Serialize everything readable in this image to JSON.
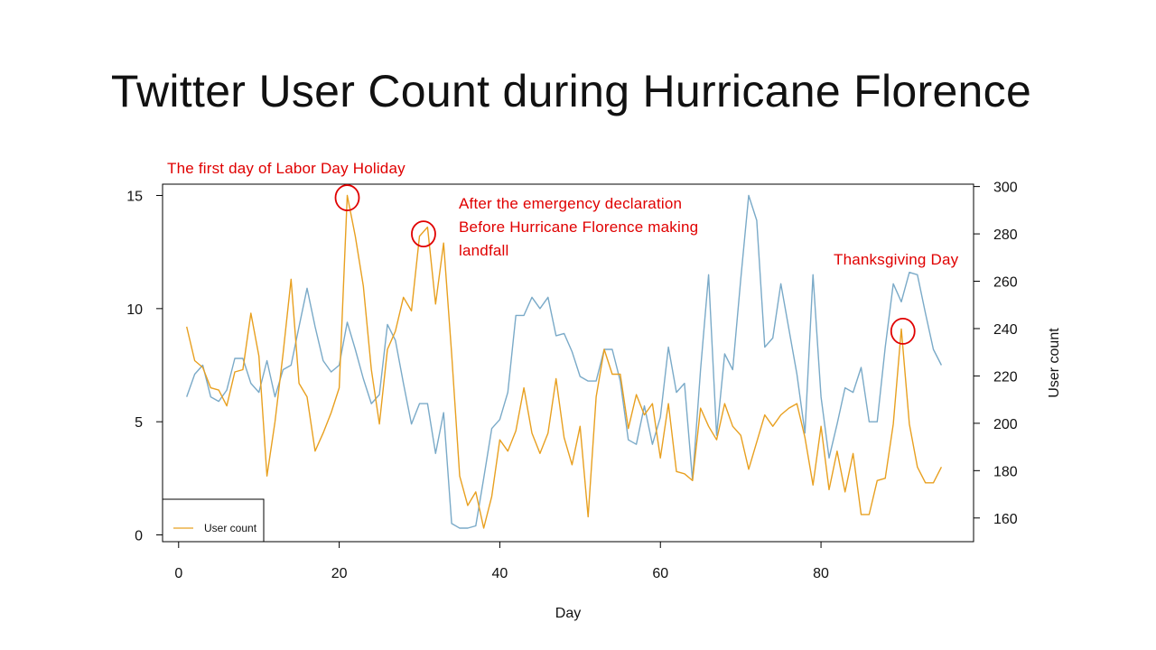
{
  "slide": {
    "title": "Twitter User Count during Hurricane Florence"
  },
  "annotations": [
    {
      "text": "The first day of Labor Day Holiday",
      "x": 21.0,
      "y_left": 14.9,
      "circle": true
    },
    {
      "text": "After the emergency declaration\nBefore Hurricane Florence making\nlandfall",
      "x": 30.5,
      "y_left": 13.3,
      "circle": true
    },
    {
      "text": "Thanksgiving Day",
      "x": 90.2,
      "y_left": 9.0,
      "circle": true
    }
  ],
  "colors": {
    "orange": "#e8a020",
    "blue": "#7aaac8",
    "annotation": "#e00000",
    "axis": "#000000"
  },
  "chart_data": {
    "type": "line",
    "title": "Twitter User Count during Hurricane Florence",
    "xlabel": "Day",
    "ylabel_left": "",
    "ylabel_right": "User count",
    "xlim": [
      -2,
      99
    ],
    "ylim_left": [
      -0.3,
      15.5
    ],
    "ylim_right": [
      150,
      301
    ],
    "x_ticks": [
      0,
      20,
      40,
      60,
      80
    ],
    "y_left_ticks": [
      0,
      5,
      10,
      15
    ],
    "y_right_ticks": [
      160,
      180,
      200,
      220,
      240,
      260,
      280,
      300
    ],
    "grid": false,
    "legend": {
      "position": "bottom-left",
      "entries": [
        "User count"
      ]
    },
    "series": [
      {
        "name": "User count",
        "axis": "left",
        "color": "#e8a020",
        "x": [
          1,
          2,
          3,
          4,
          5,
          6,
          7,
          8,
          9,
          10,
          11,
          12,
          13,
          14,
          15,
          16,
          17,
          18,
          19,
          20,
          21,
          22,
          23,
          24,
          25,
          26,
          27,
          28,
          29,
          30,
          31,
          32,
          33,
          34,
          35,
          36,
          37,
          38,
          39,
          40,
          41,
          42,
          43,
          44,
          45,
          46,
          47,
          48,
          49,
          50,
          51,
          52,
          53,
          54,
          55,
          56,
          57,
          58,
          59,
          60,
          61,
          62,
          63,
          64,
          65,
          66,
          67,
          68,
          69,
          70,
          71,
          72,
          73,
          74,
          75,
          76,
          77,
          78,
          79,
          80,
          81,
          82,
          83,
          84,
          85,
          86,
          87,
          88,
          89,
          90,
          91,
          92,
          93,
          94,
          95
        ],
        "values": [
          9.2,
          7.7,
          7.4,
          6.5,
          6.4,
          5.7,
          7.2,
          7.3,
          9.8,
          7.9,
          2.6,
          5.0,
          8.0,
          11.3,
          6.7,
          6.1,
          3.7,
          4.5,
          5.4,
          6.5,
          15.0,
          13.2,
          11.0,
          7.3,
          4.9,
          8.2,
          9.0,
          10.5,
          9.9,
          13.2,
          13.6,
          10.2,
          12.9,
          8.0,
          2.6,
          1.3,
          1.9,
          0.3,
          1.7,
          4.2,
          3.7,
          4.6,
          6.5,
          4.5,
          3.6,
          4.5,
          6.9,
          4.3,
          3.1,
          4.8,
          0.8,
          6.1,
          8.2,
          7.1,
          7.1,
          4.7,
          6.2,
          5.3,
          5.8,
          3.4,
          5.8,
          2.8,
          2.7,
          2.4,
          5.6,
          4.8,
          4.2,
          5.8,
          4.8,
          4.4,
          2.9,
          4.1,
          5.3,
          4.8,
          5.3,
          5.6,
          5.8,
          4.3,
          2.2,
          4.8,
          2.0,
          3.7,
          1.9,
          3.6,
          0.9,
          0.9,
          2.4,
          2.5,
          4.9,
          9.1,
          4.9,
          3.0,
          2.3,
          2.3,
          3.0
        ]
      },
      {
        "name": "",
        "axis": "left",
        "color": "#7aaac8",
        "x": [
          1,
          2,
          3,
          4,
          5,
          6,
          7,
          8,
          9,
          10,
          11,
          12,
          13,
          14,
          15,
          16,
          17,
          18,
          19,
          20,
          21,
          22,
          23,
          24,
          25,
          26,
          27,
          28,
          29,
          30,
          31,
          32,
          33,
          34,
          35,
          36,
          37,
          38,
          39,
          40,
          41,
          42,
          43,
          44,
          45,
          46,
          47,
          48,
          49,
          50,
          51,
          52,
          53,
          54,
          55,
          56,
          57,
          58,
          59,
          60,
          61,
          62,
          63,
          64,
          65,
          66,
          67,
          68,
          69,
          70,
          71,
          72,
          73,
          74,
          75,
          76,
          77,
          78,
          79,
          80,
          81,
          82,
          83,
          84,
          85,
          86,
          87,
          88,
          89,
          90,
          91,
          92,
          93,
          94,
          95
        ],
        "values": [
          6.1,
          7.1,
          7.5,
          6.1,
          5.9,
          6.4,
          7.8,
          7.8,
          6.7,
          6.3,
          7.7,
          6.1,
          7.3,
          7.5,
          9.2,
          10.9,
          9.2,
          7.7,
          7.2,
          7.5,
          9.4,
          8.2,
          6.9,
          5.8,
          6.2,
          9.3,
          8.6,
          6.7,
          4.9,
          5.8,
          5.8,
          3.6,
          5.4,
          0.5,
          0.3,
          0.3,
          0.4,
          2.5,
          4.7,
          5.1,
          6.3,
          9.7,
          9.7,
          10.5,
          10.0,
          10.5,
          8.8,
          8.9,
          8.1,
          7.0,
          6.8,
          6.8,
          8.2,
          8.2,
          6.8,
          4.2,
          4.0,
          5.7,
          4.0,
          5.2,
          8.3,
          6.3,
          6.7,
          2.4,
          7.3,
          11.5,
          4.4,
          8.0,
          7.3,
          11.3,
          15.0,
          13.9,
          8.3,
          8.7,
          11.1,
          9.1,
          7.1,
          4.5,
          11.5,
          6.1,
          3.4,
          4.9,
          6.5,
          6.3,
          7.4,
          5.0,
          5.0,
          8.3,
          11.1,
          10.3,
          11.6,
          11.5,
          9.8,
          8.2,
          7.5
        ]
      }
    ]
  }
}
